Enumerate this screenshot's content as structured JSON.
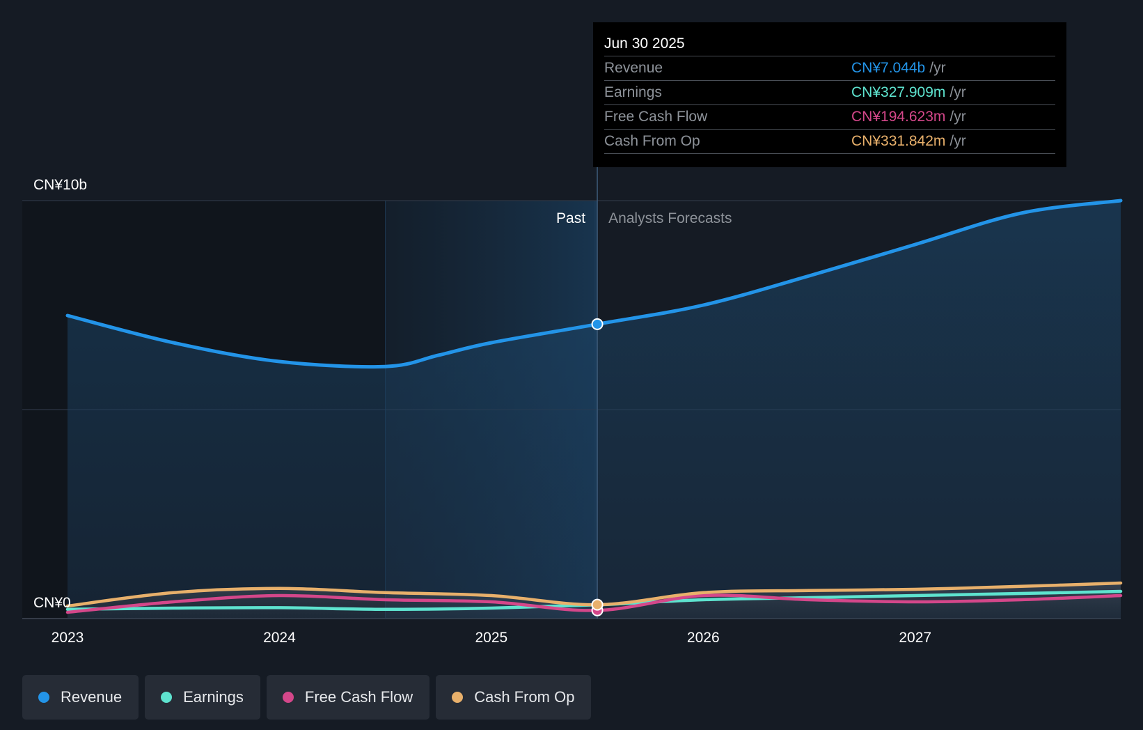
{
  "chart_data": {
    "type": "area",
    "y_axis": {
      "top_label": "CN¥10b",
      "bottom_label": "CN¥0",
      "ylim": [
        0,
        10
      ]
    },
    "x_axis": {
      "ticks": [
        "2023",
        "2024",
        "2025",
        "2026",
        "2027"
      ],
      "xlim": [
        2023.0,
        2027.97
      ]
    },
    "divider": {
      "x": 2025.5,
      "past_label": "Past",
      "forecast_label": "Analysts Forecasts"
    },
    "highlight_band": [
      2024.5,
      2025.5
    ],
    "grid": true,
    "legend_position": "bottom-left",
    "series": [
      {
        "name": "Revenue",
        "key": "revenue",
        "color": "#2394e8",
        "filled": true,
        "points": [
          [
            2023.0,
            7.25
          ],
          [
            2023.5,
            6.6
          ],
          [
            2024.0,
            6.15
          ],
          [
            2024.5,
            6.03
          ],
          [
            2024.75,
            6.3
          ],
          [
            2025.0,
            6.6
          ],
          [
            2025.5,
            7.044
          ],
          [
            2026.0,
            7.5
          ],
          [
            2026.5,
            8.2
          ],
          [
            2027.0,
            8.95
          ],
          [
            2027.5,
            9.7
          ],
          [
            2027.97,
            10.0
          ]
        ]
      },
      {
        "name": "Earnings",
        "key": "earnings",
        "color": "#5ee3cf",
        "filled": false,
        "points": [
          [
            2023.0,
            0.22
          ],
          [
            2023.5,
            0.25
          ],
          [
            2024.0,
            0.26
          ],
          [
            2024.5,
            0.22
          ],
          [
            2025.0,
            0.25
          ],
          [
            2025.5,
            0.328
          ],
          [
            2026.0,
            0.45
          ],
          [
            2026.5,
            0.5
          ],
          [
            2027.0,
            0.55
          ],
          [
            2027.5,
            0.6
          ],
          [
            2027.97,
            0.65
          ]
        ]
      },
      {
        "name": "Free Cash Flow",
        "key": "fcf",
        "color": "#d4478a",
        "filled": false,
        "points": [
          [
            2023.0,
            0.15
          ],
          [
            2023.5,
            0.4
          ],
          [
            2024.0,
            0.55
          ],
          [
            2024.5,
            0.45
          ],
          [
            2025.0,
            0.4
          ],
          [
            2025.5,
            0.195
          ],
          [
            2026.0,
            0.55
          ],
          [
            2026.5,
            0.45
          ],
          [
            2027.0,
            0.4
          ],
          [
            2027.5,
            0.45
          ],
          [
            2027.97,
            0.55
          ]
        ]
      },
      {
        "name": "Cash From Op",
        "key": "cfo",
        "color": "#e8b06b",
        "filled": false,
        "points": [
          [
            2023.0,
            0.3
          ],
          [
            2023.5,
            0.62
          ],
          [
            2024.0,
            0.72
          ],
          [
            2024.5,
            0.62
          ],
          [
            2025.0,
            0.55
          ],
          [
            2025.5,
            0.332
          ],
          [
            2026.0,
            0.62
          ],
          [
            2026.5,
            0.67
          ],
          [
            2027.0,
            0.7
          ],
          [
            2027.5,
            0.77
          ],
          [
            2027.97,
            0.85
          ]
        ]
      }
    ]
  },
  "tooltip": {
    "date": "Jun 30 2025",
    "unit": "/yr",
    "rows": [
      {
        "label": "Revenue",
        "value": "CN¥7.044b",
        "color": "#2394e8"
      },
      {
        "label": "Earnings",
        "value": "CN¥327.909m",
        "color": "#5ee3cf"
      },
      {
        "label": "Free Cash Flow",
        "value": "CN¥194.623m",
        "color": "#d4478a"
      },
      {
        "label": "Cash From Op",
        "value": "CN¥331.842m",
        "color": "#e8b06b"
      }
    ]
  },
  "legend": [
    {
      "label": "Revenue",
      "color": "#2394e8"
    },
    {
      "label": "Earnings",
      "color": "#5ee3cf"
    },
    {
      "label": "Free Cash Flow",
      "color": "#d4478a"
    },
    {
      "label": "Cash From Op",
      "color": "#e8b06b"
    }
  ]
}
